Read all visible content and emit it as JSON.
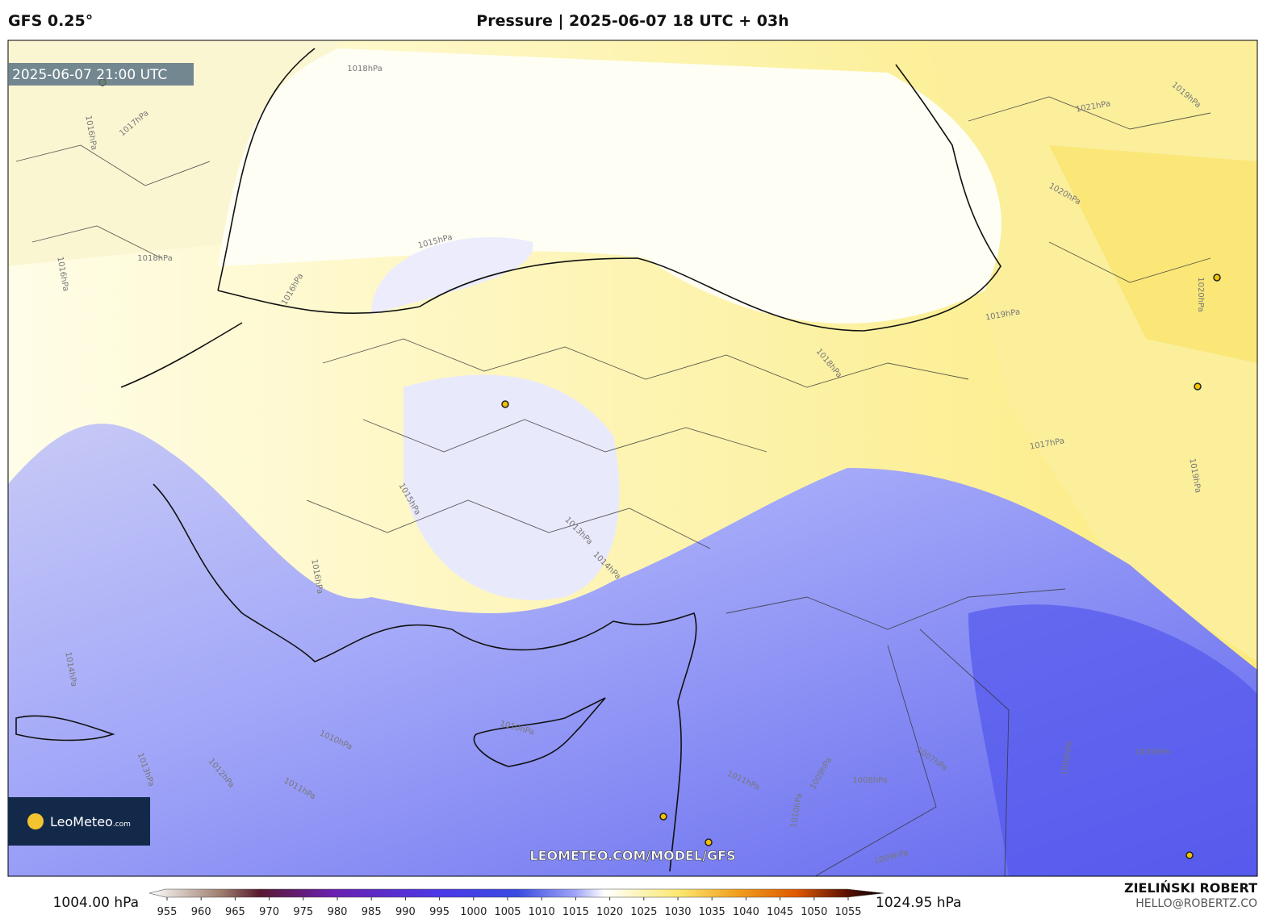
{
  "header": {
    "model": "GFS 0.25°",
    "title": "Pressure | 2025-06-07 18 UTC + 03h"
  },
  "map": {
    "valid_time": "2025-06-07 21:00 UTC",
    "logo": "LeoMeteo",
    "logo_suffix": ".com",
    "watermark": "LEOMETEO.COM/MODEL/GFS",
    "contour_labels": [
      "1018hPa",
      "1015hPa",
      "1016hPa",
      "1018hPa",
      "1019hPa",
      "1018hPa",
      "1017hPa",
      "1015hPa",
      "1013hPa",
      "1014hPa",
      "1016hPa",
      "1014hPa",
      "1010hPa",
      "1011hPa",
      "1012hPa",
      "1013hPa",
      "1010hPa",
      "1011hPa",
      "1009hPa",
      "1010hPa",
      "1008hPa",
      "1007hPa",
      "1006hPa",
      "1005hPa",
      "1009hPa",
      "1020hPa",
      "1021hPa",
      "1019hPa",
      "1020hPa",
      "1019hPa",
      "1016hPa",
      "1016hPa",
      "1017hPa"
    ]
  },
  "colorbar": {
    "min_label": "1004.00 hPa",
    "max_label": "1024.95 hPa",
    "ticks": [
      955,
      960,
      965,
      970,
      975,
      980,
      985,
      990,
      995,
      1000,
      1005,
      1010,
      1015,
      1020,
      1025,
      1030,
      1035,
      1040,
      1045,
      1050,
      1055
    ]
  },
  "footer": {
    "author": "ZIELIŃSKI ROBERT",
    "email": "HELLO@ROBERTZ.CO"
  }
}
